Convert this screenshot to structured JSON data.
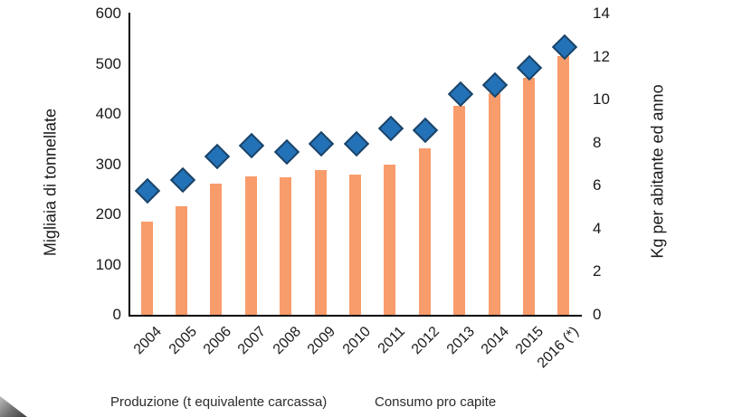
{
  "chart_data": {
    "type": "combo",
    "title": "",
    "categories": [
      "2004",
      "2005",
      "2006",
      "2007",
      "2008",
      "2009",
      "2010",
      "2011",
      "2012",
      "2013",
      "2014",
      "2015",
      "2016 (*)"
    ],
    "series": [
      {
        "name": "Produzione (t equivalente carcassa)",
        "type": "bar",
        "axis": "left",
        "color": "#F89C6B",
        "values": [
          185,
          216,
          261,
          276,
          273,
          288,
          280,
          300,
          331,
          416,
          442,
          472,
          515
        ]
      },
      {
        "name": "Consumo pro capite",
        "type": "scatter",
        "marker": "diamond",
        "axis": "right",
        "color": "#2372B8",
        "marker_border_color": "#1B4367",
        "values": [
          5.8,
          6.3,
          7.4,
          7.9,
          7.6,
          8.0,
          8.0,
          8.7,
          8.6,
          10.3,
          10.7,
          11.5,
          12.5
        ]
      }
    ],
    "left_axis": {
      "label": "Migliaia di tonnellate",
      "min": 0,
      "max": 600,
      "ticks": [
        0,
        100,
        200,
        300,
        400,
        500,
        600
      ]
    },
    "right_axis": {
      "label": "Kg per abitante ed anno",
      "min": 0,
      "max": 14,
      "ticks": [
        0,
        2,
        4,
        6,
        8,
        10,
        12,
        14
      ]
    },
    "grid": false,
    "legend_position": "bottom"
  },
  "colors": {
    "axis_line": "#000000",
    "text": "#1a1a1a"
  }
}
